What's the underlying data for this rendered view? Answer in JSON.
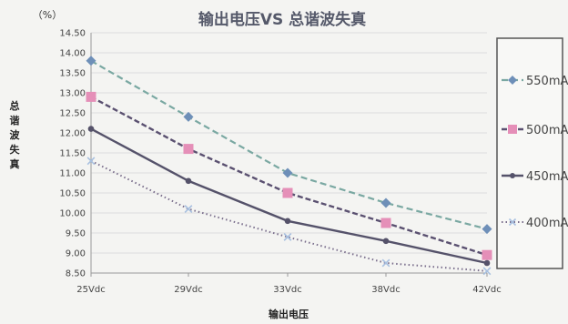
{
  "chart_data": {
    "type": "line",
    "title": "输出电压VS 总谐波失真",
    "unit_label": "（%）",
    "xlabel": "输出电压",
    "ylabel": "总谐波失真",
    "categories": [
      "25Vdc",
      "29Vdc",
      "33Vdc",
      "38Vdc",
      "42Vdc"
    ],
    "ylim": [
      8.5,
      14.5
    ],
    "yticks": [
      "8.50",
      "9.00",
      "9.50",
      "10.00",
      "10.50",
      "11.00",
      "11.50",
      "12.00",
      "12.50",
      "13.00",
      "13.50",
      "14.00",
      "14.50"
    ],
    "legend_position": "right",
    "series": [
      {
        "name": "550mA",
        "color": "#7aa8a2",
        "dash": "7,4",
        "marker": "diamond",
        "marker_color": "#6e8fb8",
        "width": 2.2,
        "values": [
          13.8,
          12.4,
          11.0,
          10.25,
          9.6
        ]
      },
      {
        "name": "500mA",
        "color": "#5a5070",
        "dash": "6,3",
        "marker": "square",
        "marker_color": "#e58fb8",
        "width": 2.4,
        "values": [
          12.9,
          11.6,
          10.5,
          9.75,
          8.95
        ]
      },
      {
        "name": "450mA",
        "color": "#55526a",
        "dash": "",
        "marker": "circle",
        "marker_color": "#55526a",
        "width": 2.4,
        "values": [
          12.1,
          10.8,
          9.8,
          9.3,
          8.75
        ]
      },
      {
        "name": "400mA",
        "color": "#7a6e8c",
        "dash": "1.5,3",
        "marker": "x",
        "marker_color": "#a8c0e0",
        "width": 2,
        "values": [
          11.3,
          10.1,
          9.4,
          8.75,
          8.55
        ]
      }
    ]
  }
}
